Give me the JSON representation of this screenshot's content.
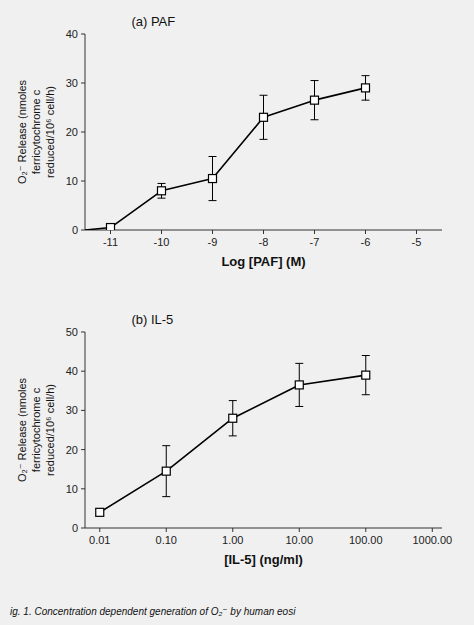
{
  "chart_data": [
    {
      "type": "line",
      "title": "(a) PAF",
      "x": [
        -11.5,
        -11,
        -10,
        -9,
        -8,
        -7,
        -6
      ],
      "series": [
        {
          "type": "line",
          "color": "#000000",
          "marker": "none",
          "line_style": "solid",
          "values": [
            0.0,
            0.5,
            8.0,
            10.5,
            23.0,
            26.5,
            29.0
          ]
        },
        {
          "type": "scatter",
          "color": "#000000",
          "marker": "square",
          "line_style": "none",
          "values": [
            null,
            0.5,
            8.0,
            10.5,
            23.0,
            26.5,
            29.0
          ],
          "errors": [
            null,
            0.3,
            1.5,
            4.5,
            4.5,
            4.0,
            2.5
          ]
        }
      ],
      "xlabel": "Log [PAF] (M)",
      "ylabel": "O₂⁻ Release (nmoles\nferricytochrome c\nreduced/10⁶ cell/h)",
      "xlim": [
        -11.5,
        -4.5
      ],
      "ylim": [
        0,
        40
      ],
      "xticks": [
        -11,
        -10,
        -9,
        -8,
        -7,
        -6,
        -5
      ],
      "yticks": [
        0,
        10,
        20,
        30,
        40
      ],
      "grid": false
    },
    {
      "type": "line",
      "title": "(b) IL-5",
      "log": "x",
      "x": [
        0.01,
        0.1,
        1.0,
        10.0,
        100.0
      ],
      "series": [
        {
          "type": "line",
          "color": "#000000",
          "marker": "square",
          "line_style": "solid",
          "values": [
            4.0,
            14.5,
            28.0,
            36.5,
            39.0
          ],
          "errors": [
            0.8,
            6.5,
            4.5,
            5.5,
            5.0
          ]
        }
      ],
      "xlabel": "[IL-5] (ng/ml)",
      "ylabel": "O₂⁻ Release (nmoles\nferricytochrome c\nreduced/10⁶ cell/h)",
      "xlim": [
        0.006,
        1400
      ],
      "ylim": [
        0,
        50
      ],
      "xticks": [
        0.01,
        {
          "value": 0.1,
          "label": "0.10"
        },
        {
          "value": 1.0,
          "label": "1.00"
        },
        {
          "value": 10.0,
          "label": "10.00"
        },
        {
          "value": 100.0,
          "label": "100.00"
        },
        {
          "value": 1000.0,
          "label": "1000.00"
        }
      ],
      "yticks": [
        0,
        10,
        20,
        30,
        40,
        50
      ],
      "grid": false,
      "caption": "ig. 1. Concentration dependent generation of O₂⁻ by human eosi"
    }
  ]
}
